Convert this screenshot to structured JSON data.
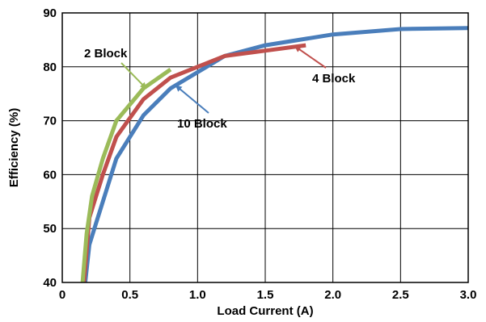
{
  "chart_data": {
    "type": "line",
    "xlabel": "Load Current (A)",
    "ylabel": "Efficiency (%)",
    "xlim": [
      0,
      3.0
    ],
    "ylim": [
      40,
      90
    ],
    "x_ticks": [
      "0",
      "0.5",
      "1.0",
      "1.5",
      "2.0",
      "2.5",
      "3.0"
    ],
    "y_ticks": [
      "40",
      "50",
      "60",
      "70",
      "80",
      "90"
    ],
    "grid": true,
    "series": [
      {
        "name": "10 Block",
        "color": "#4a7ebb",
        "x": [
          0.17,
          0.2,
          0.25,
          0.3,
          0.4,
          0.6,
          0.8,
          1.0,
          1.2,
          1.5,
          2.0,
          2.5,
          3.0
        ],
        "y": [
          40,
          47,
          51,
          55,
          63,
          71,
          76,
          79,
          82,
          84,
          86,
          87,
          87.2
        ]
      },
      {
        "name": "4 Block",
        "color": "#c0504d",
        "x": [
          0.16,
          0.2,
          0.25,
          0.3,
          0.4,
          0.6,
          0.8,
          1.0,
          1.2,
          1.5,
          1.8
        ],
        "y": [
          40,
          52,
          56,
          60,
          67,
          74,
          78,
          80,
          82,
          83,
          84
        ]
      },
      {
        "name": "2 Block",
        "color": "#9bbb59",
        "x": [
          0.15,
          0.18,
          0.22,
          0.3,
          0.4,
          0.6,
          0.8
        ],
        "y": [
          40,
          49,
          56,
          63,
          70,
          76,
          79.5
        ]
      }
    ],
    "annotations": [
      {
        "text": "2 Block",
        "series": "2 Block",
        "arrow_to": [
          0.62,
          76
        ]
      },
      {
        "text": "10 Block",
        "series": "10 Block",
        "arrow_to": [
          0.84,
          76.5
        ]
      },
      {
        "text": "4 Block",
        "series": "4 Block",
        "arrow_to": [
          1.72,
          83.8
        ]
      }
    ]
  }
}
